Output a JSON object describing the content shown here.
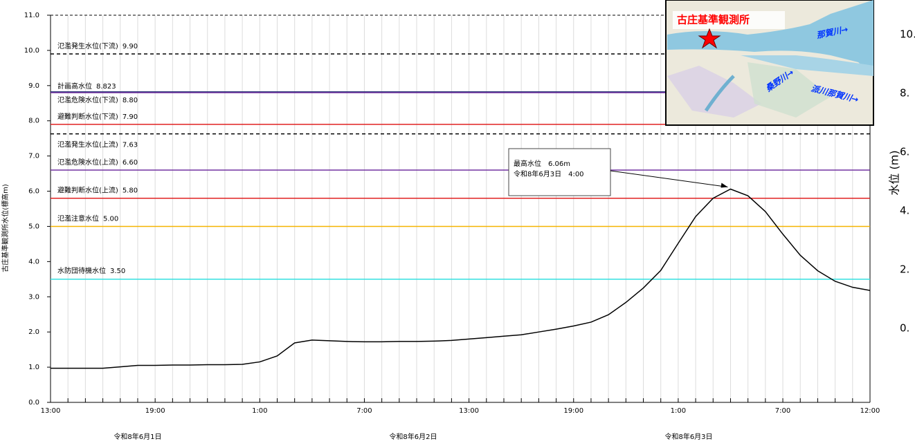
{
  "chart_data": {
    "type": "line",
    "y_label": "古庄基準観測所水位(標高m)",
    "categories": [
      "13:00",
      null,
      null,
      null,
      null,
      null,
      "19:00",
      null,
      null,
      null,
      null,
      null,
      "1:00",
      null,
      null,
      null,
      null,
      null,
      "7:00",
      null,
      null,
      null,
      null,
      null,
      "13:00",
      null,
      null,
      null,
      null,
      null,
      "19:00",
      null,
      null,
      null,
      null,
      null,
      "1:00",
      null,
      null,
      null,
      null,
      null,
      "7:00",
      null,
      null,
      null,
      null,
      "12:00"
    ],
    "day_labels": [
      "令和8年6月1日",
      "令和8年6月2日",
      "令和8年6月3日"
    ],
    "values": [
      0.97,
      0.97,
      0.97,
      0.97,
      1.01,
      1.05,
      1.05,
      1.06,
      1.06,
      1.07,
      1.07,
      1.08,
      1.15,
      1.32,
      1.69,
      1.77,
      1.75,
      1.73,
      1.72,
      1.72,
      1.73,
      1.73,
      1.74,
      1.76,
      1.8,
      1.84,
      1.88,
      1.92,
      2.0,
      2.08,
      2.17,
      2.28,
      2.49,
      2.84,
      3.25,
      3.75,
      4.52,
      5.28,
      5.8,
      6.06,
      5.87,
      5.42,
      4.78,
      4.18,
      3.74,
      3.44,
      3.27,
      3.18
    ],
    "color": "#000000",
    "ylim": [
      0,
      11
    ],
    "yticks": [
      {
        "value": 0,
        "label": "0.0"
      },
      {
        "value": 1,
        "label": "1.0"
      },
      {
        "value": 2,
        "label": "2.0"
      },
      {
        "value": 3,
        "label": "3.0"
      },
      {
        "value": 4,
        "label": "4.0"
      },
      {
        "value": 5,
        "label": "5.0"
      },
      {
        "value": 6,
        "label": "6.0"
      },
      {
        "value": 7,
        "label": "7.0"
      },
      {
        "value": 8,
        "label": "8.0"
      },
      {
        "value": 9,
        "label": "9.0"
      },
      {
        "value": 10,
        "label": "10.0"
      },
      {
        "value": 11,
        "label": "11.0"
      }
    ],
    "thresholds": [
      {
        "name": "氾濫発生水位(下流)",
        "value": 9.9,
        "value_label": "9.90",
        "color": "#000000",
        "dashed": true
      },
      {
        "name": "計画高水位",
        "value": 8.823,
        "value_label": "8.823",
        "color": "#1f2a6e",
        "dashed": false
      },
      {
        "name": "氾濫危険水位(下流)",
        "value": 8.8,
        "value_label": "8.80",
        "color": "#7030a0",
        "dashed": false
      },
      {
        "name": "避難判断水位(下流)",
        "value": 7.9,
        "value_label": "7.90",
        "color": "#e02020",
        "dashed": false
      },
      {
        "name": "氾濫発生水位(上流)",
        "value": 7.63,
        "value_label": "7.63",
        "color": "#000000",
        "dashed": true
      },
      {
        "name": "氾濫危険水位(上流)",
        "value": 6.6,
        "value_label": "6.60",
        "color": "#7030a0",
        "dashed": false
      },
      {
        "name": "避難判断水位(上流)",
        "value": 5.8,
        "value_label": "5.80",
        "color": "#e02020",
        "dashed": false
      },
      {
        "name": "氾濫注意水位",
        "value": 5.0,
        "value_label": "5.00",
        "color": "#f5b400",
        "dashed": false
      },
      {
        "name": "水防団待機水位",
        "value": 3.5,
        "value_label": "3.50",
        "color": "#33e0e0",
        "dashed": false
      }
    ],
    "annotation": [
      "最高水位　6.06m",
      "令和8年6月3日　4:00"
    ]
  },
  "map": {
    "title": "古庄基準観測所",
    "labels": [
      "那賀川→",
      "桑野川→",
      "派川那賀川→"
    ]
  },
  "side_panel": {
    "axis_label": "水位 (m)",
    "ticks": [
      "10.",
      "8.",
      "6.",
      "4.",
      "2.",
      "0."
    ]
  }
}
